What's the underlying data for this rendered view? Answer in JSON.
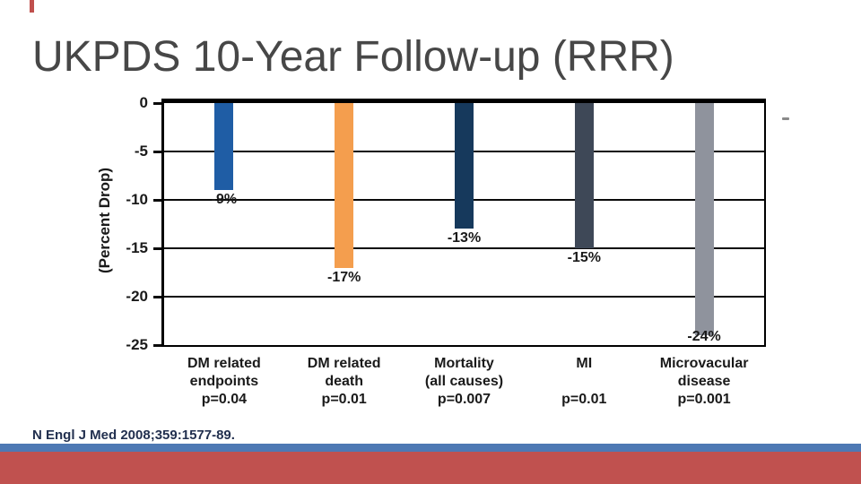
{
  "slide": {
    "title": "UKPDS 10-Year Follow-up (RRR)",
    "citation": "N Engl J Med 2008;359:1577-89.",
    "title_color": "#474747",
    "citation_color": "#22304f",
    "top_red_dash_color": "#c0504d",
    "stray_dash_color": "#8a8a8a",
    "stripe_blue_color": "#4e79b4",
    "stripe_red_color": "#c0514f"
  },
  "chart_data": {
    "type": "bar",
    "title": "",
    "xlabel": "",
    "ylabel": "(Percent Drop)",
    "ylim": [
      -25,
      0
    ],
    "yticks": [
      0,
      -5,
      -10,
      -15,
      -20,
      -25
    ],
    "grid": true,
    "legend": false,
    "categories": [
      "DM related endpoints",
      "DM related death",
      "Mortality (all causes)",
      "MI",
      "Microvacular disease"
    ],
    "category_lines": [
      [
        "DM related",
        "endpoints"
      ],
      [
        "DM related",
        "death"
      ],
      [
        "Mortality",
        "(all causes)"
      ],
      [
        "MI",
        ""
      ],
      [
        "Microvacular",
        "disease"
      ]
    ],
    "p_values": [
      "p=0.04",
      "p=0.01",
      "p=0.007",
      "p=0.01",
      "p=0.001"
    ],
    "values": [
      -9,
      -17,
      -13,
      -15,
      -24
    ],
    "bar_labels": [
      "-9%",
      "-17%",
      "-13%",
      "-15%",
      "-24%"
    ],
    "bar_colors": [
      "#1f5da5",
      "#f49e4e",
      "#16395c",
      "#3e4857",
      "#8f939d"
    ],
    "axis_color": "#000000"
  }
}
